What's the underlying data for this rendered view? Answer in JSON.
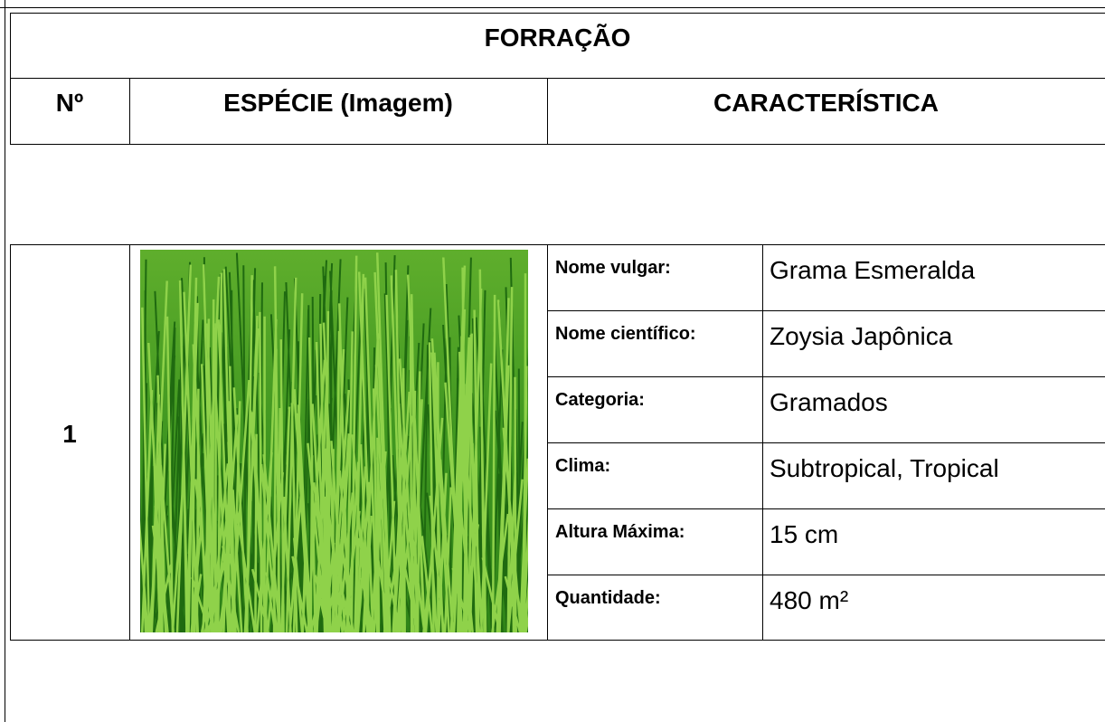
{
  "header": {
    "title": "FORRAÇÃO"
  },
  "columns": [
    "Nº",
    "ESPÉCIE (Imagem)",
    "CARACTERÍSTICA"
  ],
  "rows": [
    {
      "number": "1",
      "characteristics": [
        {
          "label": "Nome vulgar:",
          "value": "Grama Esmeralda"
        },
        {
          "label": "Nome científico:",
          "value": "Zoysia Japônica"
        },
        {
          "label": "Categoria:",
          "value": "Gramados"
        },
        {
          "label": "Clima:",
          "value": "Subtropical, Tropical"
        },
        {
          "label": "Altura Máxima:",
          "value": "15 cm"
        },
        {
          "label": "Quantidade:",
          "value": "480 m²"
        }
      ]
    }
  ]
}
